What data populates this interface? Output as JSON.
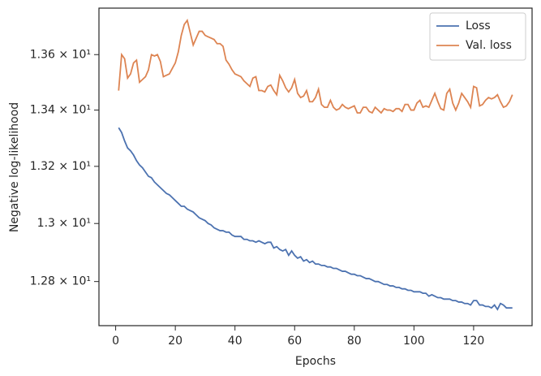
{
  "chart_data": {
    "type": "line",
    "xlabel": "Epochs",
    "ylabel": "Negative log-likelihood",
    "x": [
      1,
      2,
      3,
      4,
      5,
      6,
      7,
      8,
      9,
      10,
      11,
      12,
      13,
      14,
      15,
      16,
      17,
      18,
      19,
      20,
      21,
      22,
      23,
      24,
      25,
      26,
      27,
      28,
      29,
      30,
      31,
      32,
      33,
      34,
      35,
      36,
      37,
      38,
      39,
      40,
      41,
      42,
      43,
      44,
      45,
      46,
      47,
      48,
      49,
      50,
      51,
      52,
      53,
      54,
      55,
      56,
      57,
      58,
      59,
      60,
      61,
      62,
      63,
      64,
      65,
      66,
      67,
      68,
      69,
      70,
      71,
      72,
      73,
      74,
      75,
      76,
      77,
      78,
      79,
      80,
      81,
      82,
      83,
      84,
      85,
      86,
      87,
      88,
      89,
      90,
      91,
      92,
      93,
      94,
      95,
      96,
      97,
      98,
      99,
      100,
      101,
      102,
      103,
      104,
      105,
      106,
      107,
      108,
      109,
      110,
      111,
      112,
      113,
      114,
      115,
      116,
      117,
      118,
      119,
      120,
      121,
      122,
      123,
      124,
      125,
      126,
      127,
      128,
      129,
      130,
      131,
      132,
      133
    ],
    "series": [
      {
        "name": "Loss",
        "color": "#4c72b0",
        "values": [
          13.337,
          13.32,
          13.29,
          13.265,
          13.255,
          13.24,
          13.22,
          13.205,
          13.195,
          13.18,
          13.165,
          13.16,
          13.145,
          13.135,
          13.125,
          13.115,
          13.105,
          13.1,
          13.09,
          13.08,
          13.07,
          13.06,
          13.06,
          13.05,
          13.045,
          13.04,
          13.03,
          13.02,
          13.015,
          13.01,
          13.0,
          12.995,
          12.985,
          12.98,
          12.975,
          12.975,
          12.97,
          12.97,
          12.96,
          12.955,
          12.955,
          12.955,
          12.945,
          12.945,
          12.94,
          12.94,
          12.935,
          12.94,
          12.935,
          12.93,
          12.935,
          12.935,
          12.915,
          12.92,
          12.91,
          12.905,
          12.91,
          12.89,
          12.905,
          12.89,
          12.88,
          12.885,
          12.87,
          12.875,
          12.865,
          12.87,
          12.86,
          12.86,
          12.855,
          12.855,
          12.85,
          12.85,
          12.845,
          12.845,
          12.84,
          12.835,
          12.835,
          12.83,
          12.825,
          12.825,
          12.82,
          12.82,
          12.815,
          12.81,
          12.81,
          12.805,
          12.8,
          12.8,
          12.795,
          12.79,
          12.79,
          12.785,
          12.785,
          12.78,
          12.78,
          12.775,
          12.775,
          12.77,
          12.77,
          12.765,
          12.765,
          12.765,
          12.76,
          12.76,
          12.75,
          12.755,
          12.75,
          12.745,
          12.745,
          12.74,
          12.74,
          12.74,
          12.735,
          12.735,
          12.73,
          12.73,
          12.725,
          12.725,
          12.72,
          12.735,
          12.735,
          12.72,
          12.72,
          12.715,
          12.715,
          12.71,
          12.72,
          12.705,
          12.725,
          12.72,
          12.71,
          12.71,
          12.71
        ]
      },
      {
        "name": "Val. loss",
        "color": "#dd8452",
        "values": [
          13.47,
          13.6,
          13.585,
          13.515,
          13.53,
          13.57,
          13.58,
          13.5,
          13.51,
          13.52,
          13.545,
          13.6,
          13.595,
          13.6,
          13.575,
          13.52,
          13.525,
          13.53,
          13.55,
          13.57,
          13.61,
          13.67,
          13.71,
          13.725,
          13.68,
          13.635,
          13.66,
          13.685,
          13.685,
          13.67,
          13.665,
          13.66,
          13.655,
          13.64,
          13.64,
          13.63,
          13.58,
          13.565,
          13.545,
          13.53,
          13.525,
          13.52,
          13.505,
          13.495,
          13.485,
          13.515,
          13.52,
          13.47,
          13.47,
          13.465,
          13.485,
          13.49,
          13.47,
          13.455,
          13.525,
          13.505,
          13.48,
          13.465,
          13.48,
          13.51,
          13.46,
          13.445,
          13.45,
          13.47,
          13.43,
          13.43,
          13.445,
          13.475,
          13.42,
          13.41,
          13.41,
          13.435,
          13.41,
          13.4,
          13.405,
          13.42,
          13.41,
          13.405,
          13.41,
          13.415,
          13.39,
          13.39,
          13.41,
          13.41,
          13.395,
          13.39,
          13.41,
          13.4,
          13.39,
          13.405,
          13.4,
          13.4,
          13.395,
          13.405,
          13.405,
          13.395,
          13.42,
          13.42,
          13.4,
          13.4,
          13.425,
          13.435,
          13.41,
          13.415,
          13.41,
          13.435,
          13.46,
          13.43,
          13.405,
          13.4,
          13.46,
          13.475,
          13.425,
          13.4,
          13.425,
          13.46,
          13.445,
          13.43,
          13.41,
          13.485,
          13.48,
          13.415,
          13.42,
          13.435,
          13.445,
          13.44,
          13.445,
          13.455,
          13.43,
          13.41,
          13.415,
          13.43,
          13.455
        ]
      }
    ],
    "xlim": [
      -5.6,
      139.6
    ],
    "xticks": [
      0,
      20,
      40,
      60,
      80,
      100,
      120
    ],
    "ylim": [
      12.65,
      13.77
    ],
    "yscale": "log",
    "yticks": [
      {
        "value": 12.8,
        "label": "1.28 × 10¹"
      },
      {
        "value": 13.0,
        "label": "1.3 × 10¹"
      },
      {
        "value": 13.2,
        "label": "1.32 × 10¹"
      },
      {
        "value": 13.4,
        "label": "1.34 × 10¹"
      },
      {
        "value": 13.6,
        "label": "1.36 × 10¹"
      }
    ],
    "legend": "upper right"
  }
}
